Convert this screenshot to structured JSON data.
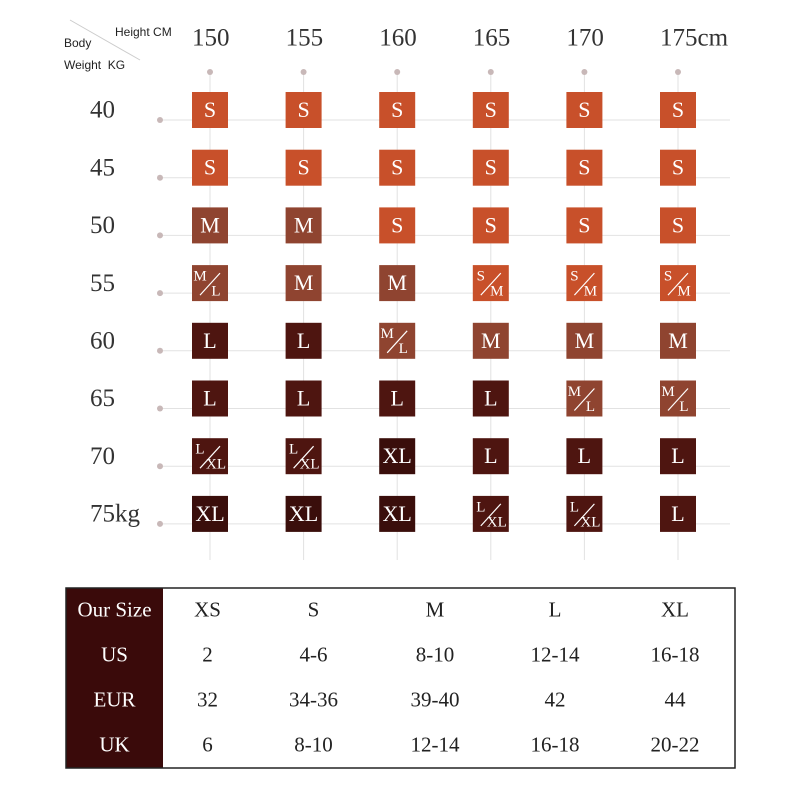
{
  "header": {
    "body": "Body",
    "height_label": "Height CM",
    "weight_label": "Weight  KG"
  },
  "grid": {
    "heights": [
      "150",
      "155",
      "160",
      "165",
      "170",
      "175cm"
    ],
    "weights": [
      "40",
      "45",
      "50",
      "55",
      "60",
      "65",
      "70",
      "75kg"
    ],
    "rows": [
      [
        "S",
        "S",
        "S",
        "S",
        "S",
        "S"
      ],
      [
        "S",
        "S",
        "S",
        "S",
        "S",
        "S"
      ],
      [
        "M",
        "M",
        "S",
        "S",
        "S",
        "S"
      ],
      [
        [
          "M",
          "L"
        ],
        "M",
        "M",
        [
          "S",
          "M"
        ],
        [
          "S",
          "M"
        ],
        [
          "S",
          "M"
        ]
      ],
      [
        "L",
        "L",
        [
          "M",
          "L"
        ],
        "M",
        "M",
        "M"
      ],
      [
        "L",
        "L",
        "L",
        "L",
        [
          "M",
          "L"
        ],
        [
          "M",
          "L"
        ]
      ],
      [
        [
          "L",
          "XL"
        ],
        [
          "L",
          "XL"
        ],
        "XL",
        "L",
        "L",
        "L"
      ],
      [
        "XL",
        "XL",
        "XL",
        [
          "L",
          "XL"
        ],
        [
          "L",
          "XL"
        ],
        "L"
      ]
    ]
  },
  "table": {
    "header": [
      "Our Size",
      "XS",
      "S",
      "M",
      "L",
      "XL"
    ],
    "rows": [
      [
        "US",
        "2",
        "4-6",
        "8-10",
        "12-14",
        "16-18"
      ],
      [
        "EUR",
        "32",
        "34-36",
        "39-40",
        "42",
        "44"
      ],
      [
        "UK",
        "6",
        "8-10",
        "12-14",
        "16-18",
        "20-22"
      ]
    ]
  }
}
